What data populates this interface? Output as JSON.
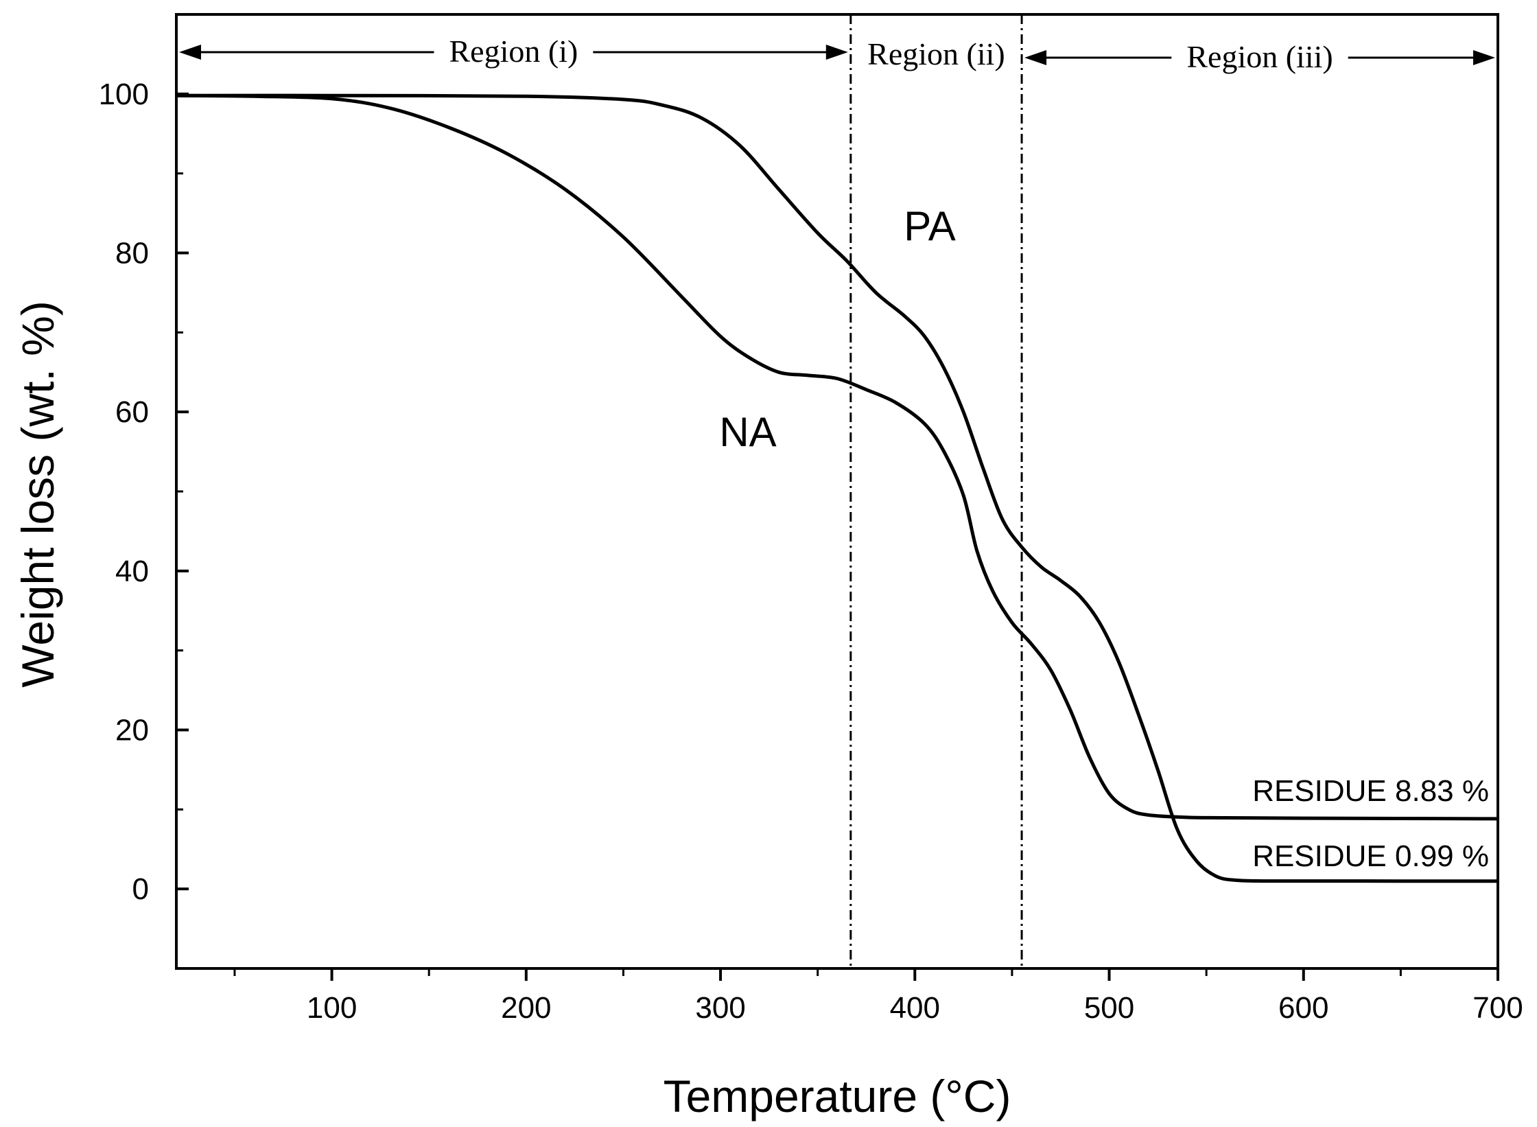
{
  "chart_data": {
    "type": "line",
    "xlabel": "Temperature (°C)",
    "ylabel": "Weight loss (wt. %)",
    "xlim": [
      20,
      700
    ],
    "ylim": [
      -10,
      110
    ],
    "x_ticks": [
      100,
      200,
      300,
      400,
      500,
      600,
      700
    ],
    "y_ticks": [
      0,
      20,
      40,
      60,
      80,
      100
    ],
    "grid": false,
    "series": [
      {
        "name": "NA",
        "x": [
          20,
          60,
          100,
          130,
          160,
          190,
          220,
          250,
          280,
          300,
          315,
          330,
          345,
          360,
          375,
          390,
          405,
          415,
          425,
          432,
          440,
          450,
          460,
          470,
          480,
          490,
          500,
          510,
          520,
          540,
          560,
          600,
          650,
          700
        ],
        "y": [
          99.8,
          99.7,
          99.4,
          98.2,
          95.8,
          92.5,
          88,
          82,
          74.5,
          69.5,
          66.8,
          65,
          64.6,
          64.2,
          62.8,
          61.2,
          58.5,
          55,
          49.5,
          42.5,
          37.5,
          33.5,
          30.8,
          27.5,
          22.5,
          16.5,
          12,
          10,
          9.3,
          9,
          8.95,
          8.9,
          8.86,
          8.83
        ]
      },
      {
        "name": "PA",
        "x": [
          20,
          100,
          200,
          250,
          270,
          290,
          310,
          330,
          350,
          365,
          380,
          395,
          405,
          415,
          425,
          435,
          445,
          455,
          465,
          475,
          485,
          495,
          505,
          515,
          525,
          535,
          545,
          555,
          565,
          580,
          600,
          650,
          700
        ],
        "y": [
          99.8,
          99.8,
          99.7,
          99.3,
          98.6,
          97,
          93.5,
          88,
          82.5,
          79,
          75,
          72,
          69.5,
          65.5,
          60,
          53,
          46.5,
          43,
          40.5,
          38.8,
          36.8,
          33.5,
          28.5,
          22,
          15,
          7.5,
          3.5,
          1.6,
          1.1,
          1.0,
          1.0,
          0.99,
          0.99
        ]
      }
    ],
    "vlines": [
      367,
      455
    ],
    "regions": [
      {
        "label": "Region (i)",
        "from": 20,
        "to": 367
      },
      {
        "label": "Region (ii)",
        "from": 367,
        "to": 455
      },
      {
        "label": "Region (iii)",
        "from": 455,
        "to": 700
      }
    ],
    "annotations": {
      "pa_label": "PA",
      "na_label": "NA",
      "residue_na": "RESIDUE 8.83 %",
      "residue_pa": "RESIDUE 0.99 %"
    }
  }
}
